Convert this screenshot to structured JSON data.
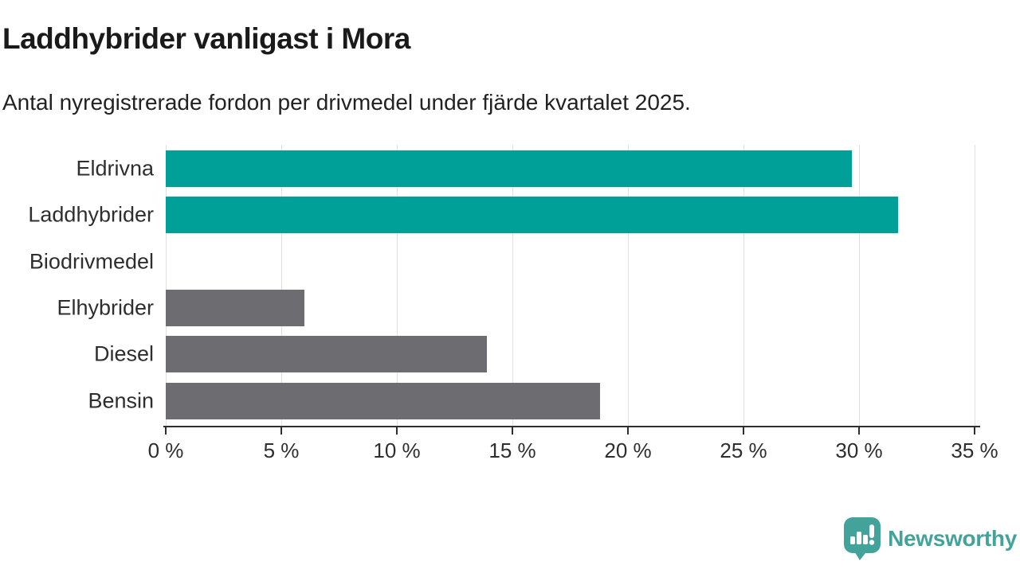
{
  "header": {
    "title": "Laddhybrider vanligast i Mora",
    "subtitle": "Antal nyregistrerade fordon per drivmedel under fjärde kvartalet 2025."
  },
  "chart_data": {
    "type": "bar",
    "orientation": "horizontal",
    "title": "Laddhybrider vanligast i Mora",
    "subtitle": "Antal nyregistrerade fordon per drivmedel under fjärde kvartalet 2025.",
    "categories": [
      "Eldrivna",
      "Laddhybrider",
      "Biodrivmedel",
      "Elhybrider",
      "Diesel",
      "Bensin"
    ],
    "values": [
      29.7,
      31.7,
      0,
      6.0,
      13.9,
      18.8
    ],
    "unit": "%",
    "bar_colors": [
      "#00a098",
      "#00a098",
      "none",
      "#6c6c71",
      "#6c6c71",
      "#6c6c71"
    ],
    "highlight_color": "#00a098",
    "default_color": "#6c6c71",
    "xlabel": "",
    "ylabel": "",
    "xlim": [
      0,
      35
    ],
    "xticks": [
      0,
      5,
      10,
      15,
      20,
      25,
      30,
      35
    ],
    "tick_suffix": " %",
    "grid": true,
    "gridline_color": "#e0e0e0",
    "axis_color": "#2e2e2e",
    "legend": false
  },
  "footer": {
    "brand": "Newsworthy",
    "brand_color": "#43a39b",
    "logo_icon": "newsworthy-speech-bubble-bar-chart-icon"
  }
}
